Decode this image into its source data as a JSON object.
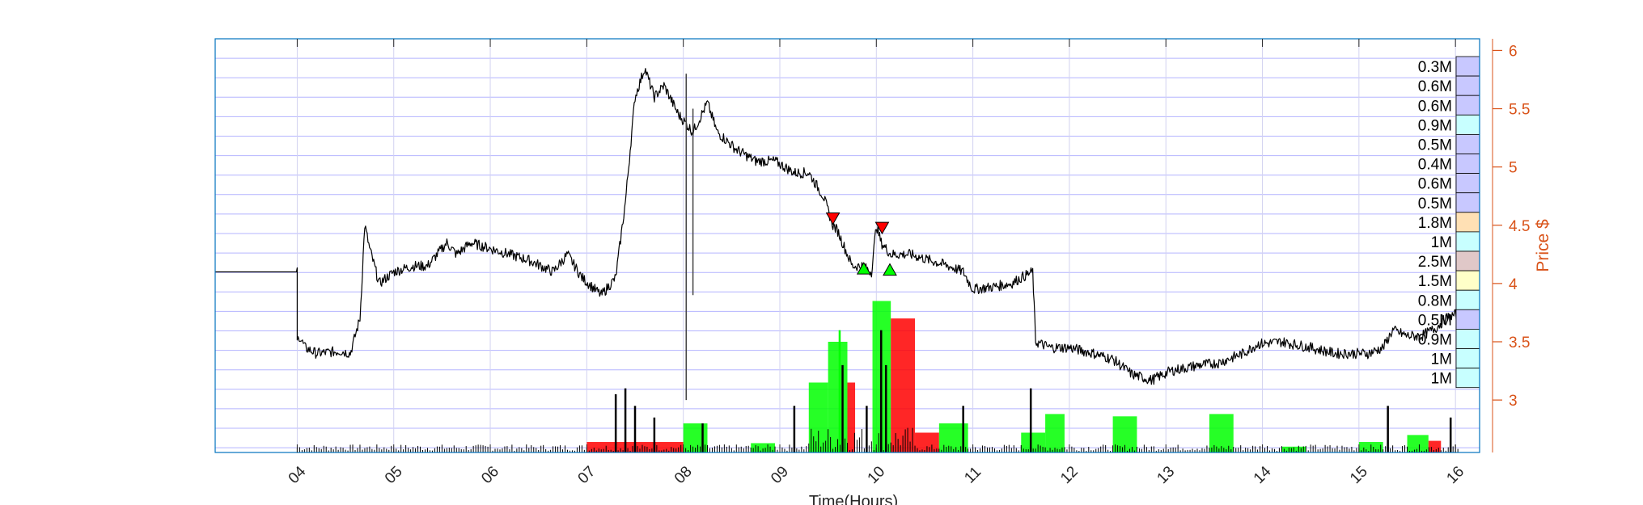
{
  "chart_data": {
    "type": "line",
    "xlabel": "Time(Hours)",
    "ylabel": "Price $",
    "x_ticks": [
      "04",
      "05",
      "06",
      "07",
      "08",
      "09",
      "10",
      "11",
      "12",
      "13",
      "14",
      "15",
      "16"
    ],
    "xlim": [
      3.15,
      16.25
    ],
    "ylim": [
      2.55,
      6.1
    ],
    "y_ticks": [
      3,
      3.5,
      4,
      4.5,
      5,
      5.5,
      6
    ],
    "y_tick_labels": [
      "3",
      "3.5",
      "4",
      "4.5",
      "5",
      "5.5",
      "6"
    ],
    "y_axis_side": "right",
    "grid": true,
    "colors": {
      "price_line": "#000000",
      "axis_right": "#d95319",
      "grid_lines": "#b4b4ff",
      "buy_volume": "#00ff00",
      "sell_volume": "#ff0000",
      "neutral_volume": "#808080"
    },
    "price_series": [
      [
        3.15,
        4.1
      ],
      [
        4.0,
        4.1
      ],
      [
        4.0,
        3.5
      ],
      [
        4.02,
        3.55
      ],
      [
        4.08,
        3.45
      ],
      [
        4.2,
        3.4
      ],
      [
        4.45,
        3.42
      ],
      [
        4.55,
        3.4
      ],
      [
        4.65,
        3.7
      ],
      [
        4.7,
        4.5
      ],
      [
        4.75,
        4.3
      ],
      [
        4.85,
        4.0
      ],
      [
        5.0,
        4.1
      ],
      [
        5.2,
        4.15
      ],
      [
        5.35,
        4.15
      ],
      [
        5.55,
        4.35
      ],
      [
        5.65,
        4.25
      ],
      [
        5.8,
        4.35
      ],
      [
        6.0,
        4.3
      ],
      [
        6.2,
        4.25
      ],
      [
        6.4,
        4.2
      ],
      [
        6.65,
        4.1
      ],
      [
        6.8,
        4.25
      ],
      [
        6.95,
        4.05
      ],
      [
        7.15,
        3.9
      ],
      [
        7.3,
        4.05
      ],
      [
        7.4,
        4.7
      ],
      [
        7.5,
        5.6
      ],
      [
        7.6,
        5.85
      ],
      [
        7.7,
        5.6
      ],
      [
        7.8,
        5.7
      ],
      [
        7.95,
        5.45
      ],
      [
        8.1,
        5.3
      ],
      [
        8.25,
        5.55
      ],
      [
        8.35,
        5.3
      ],
      [
        8.55,
        5.15
      ],
      [
        8.75,
        5.05
      ],
      [
        8.95,
        5.05
      ],
      [
        9.15,
        4.95
      ],
      [
        9.3,
        4.95
      ],
      [
        9.45,
        4.75
      ],
      [
        9.55,
        4.5
      ],
      [
        9.6,
        4.45
      ],
      [
        9.75,
        4.15
      ],
      [
        9.85,
        4.15
      ],
      [
        9.95,
        4.1
      ],
      [
        10.0,
        4.5
      ],
      [
        10.05,
        4.35
      ],
      [
        10.15,
        4.25
      ],
      [
        10.35,
        4.25
      ],
      [
        10.55,
        4.2
      ],
      [
        10.75,
        4.15
      ],
      [
        10.9,
        4.1
      ],
      [
        11.0,
        3.95
      ],
      [
        11.2,
        3.97
      ],
      [
        11.4,
        4.0
      ],
      [
        11.5,
        4.05
      ],
      [
        11.62,
        4.1
      ],
      [
        11.65,
        3.5
      ],
      [
        11.8,
        3.45
      ],
      [
        12.0,
        3.45
      ],
      [
        12.25,
        3.4
      ],
      [
        12.45,
        3.35
      ],
      [
        12.65,
        3.22
      ],
      [
        12.85,
        3.17
      ],
      [
        13.05,
        3.25
      ],
      [
        13.35,
        3.3
      ],
      [
        13.55,
        3.32
      ],
      [
        13.8,
        3.4
      ],
      [
        13.95,
        3.48
      ],
      [
        14.2,
        3.5
      ],
      [
        14.5,
        3.45
      ],
      [
        14.75,
        3.4
      ],
      [
        15.1,
        3.4
      ],
      [
        15.25,
        3.45
      ],
      [
        15.35,
        3.6
      ],
      [
        15.5,
        3.55
      ],
      [
        15.65,
        3.55
      ],
      [
        15.8,
        3.62
      ],
      [
        15.9,
        3.7
      ],
      [
        16.05,
        3.75
      ]
    ],
    "spikes": [
      {
        "x": 8.03,
        "low": 3.0,
        "high": 5.8
      },
      {
        "x": 8.1,
        "low": 3.9,
        "high": 5.5
      }
    ],
    "sell_markers": [
      [
        9.55,
        4.55
      ],
      [
        10.06,
        4.47
      ]
    ],
    "buy_markers": [
      [
        9.87,
        4.13
      ],
      [
        10.14,
        4.12
      ]
    ],
    "volume_profile": [
      {
        "label": "0.3M",
        "price": 5.9,
        "color": "#c8c8ff"
      },
      {
        "label": "0.6M",
        "price": 5.74,
        "color": "#c8c8ff"
      },
      {
        "label": "0.6M",
        "price": 5.58,
        "color": "#c8c8ff"
      },
      {
        "label": "0.9M",
        "price": 5.41,
        "color": "#c8ffff"
      },
      {
        "label": "0.5M",
        "price": 5.24,
        "color": "#c8c8ff"
      },
      {
        "label": "0.4M",
        "price": 5.07,
        "color": "#c8c8ff"
      },
      {
        "label": "0.6M",
        "price": 4.91,
        "color": "#c8c8ff"
      },
      {
        "label": "0.5M",
        "price": 4.74,
        "color": "#c8c8ff"
      },
      {
        "label": "1.8M",
        "price": 4.57,
        "color": "#ffe0b4"
      },
      {
        "label": "1M",
        "price": 4.41,
        "color": "#c8ffff"
      },
      {
        "label": "2.5M",
        "price": 4.24,
        "color": "#e0c8c8"
      },
      {
        "label": "1.5M",
        "price": 4.07,
        "color": "#ffffc8"
      },
      {
        "label": "0.8M",
        "price": 3.91,
        "color": "#c8ffff"
      },
      {
        "label": "0.5M",
        "price": 3.74,
        "color": "#c8c8ff"
      },
      {
        "label": "0.9M",
        "price": 3.57,
        "color": "#c8ffff"
      },
      {
        "label": "1M",
        "price": 3.41,
        "color": "#c8ffff"
      },
      {
        "label": "1M",
        "price": 3.24,
        "color": "#c8ffff"
      }
    ],
    "volume_blocks": [
      {
        "x0": 7.0,
        "x1": 8.0,
        "top": 2.64,
        "side": "sell"
      },
      {
        "x0": 8.0,
        "x1": 8.25,
        "top": 2.8,
        "side": "buy"
      },
      {
        "x0": 8.7,
        "x1": 8.95,
        "top": 2.63,
        "side": "buy"
      },
      {
        "x0": 9.3,
        "x1": 9.5,
        "top": 3.15,
        "side": "buy"
      },
      {
        "x0": 9.5,
        "x1": 9.7,
        "top": 3.5,
        "side": "buy"
      },
      {
        "x0": 9.7,
        "x1": 9.78,
        "top": 3.15,
        "side": "sell"
      },
      {
        "x0": 9.96,
        "x1": 10.15,
        "top": 3.85,
        "side": "buy"
      },
      {
        "x0": 10.15,
        "x1": 10.4,
        "top": 3.7,
        "side": "sell"
      },
      {
        "x0": 10.4,
        "x1": 10.65,
        "top": 2.72,
        "side": "sell"
      },
      {
        "x0": 10.65,
        "x1": 10.95,
        "top": 2.8,
        "side": "buy"
      },
      {
        "x0": 11.5,
        "x1": 11.75,
        "top": 2.72,
        "side": "buy"
      },
      {
        "x0": 11.75,
        "x1": 11.95,
        "top": 2.88,
        "side": "buy"
      },
      {
        "x0": 12.45,
        "x1": 12.7,
        "top": 2.86,
        "side": "buy"
      },
      {
        "x0": 13.45,
        "x1": 13.7,
        "top": 2.88,
        "side": "buy"
      },
      {
        "x0": 14.2,
        "x1": 14.45,
        "top": 2.6,
        "side": "buy"
      },
      {
        "x0": 15.0,
        "x1": 15.25,
        "top": 2.64,
        "side": "buy"
      },
      {
        "x0": 15.5,
        "x1": 15.72,
        "top": 2.7,
        "side": "buy"
      },
      {
        "x0": 15.72,
        "x1": 15.85,
        "top": 2.65,
        "side": "sell"
      }
    ],
    "volume_spikes": [
      {
        "x": 7.3,
        "top": 3.05,
        "side": "neutral"
      },
      {
        "x": 7.4,
        "top": 3.1,
        "side": "neutral"
      },
      {
        "x": 7.5,
        "top": 2.95,
        "side": "neutral"
      },
      {
        "x": 7.7,
        "top": 2.85,
        "side": "neutral"
      },
      {
        "x": 8.2,
        "top": 2.8,
        "side": "neutral"
      },
      {
        "x": 9.15,
        "top": 2.95,
        "side": "neutral"
      },
      {
        "x": 9.62,
        "top": 3.6,
        "side": "buy"
      },
      {
        "x": 9.65,
        "top": 3.3,
        "side": "neutral"
      },
      {
        "x": 9.9,
        "top": 2.95,
        "side": "neutral"
      },
      {
        "x": 10.05,
        "top": 3.6,
        "side": "neutral"
      },
      {
        "x": 10.1,
        "top": 3.3,
        "side": "neutral"
      },
      {
        "x": 10.9,
        "top": 2.95,
        "side": "neutral"
      },
      {
        "x": 11.6,
        "top": 3.1,
        "side": "neutral"
      },
      {
        "x": 15.3,
        "top": 2.95,
        "side": "neutral"
      },
      {
        "x": 15.95,
        "top": 2.85,
        "side": "neutral"
      }
    ]
  }
}
